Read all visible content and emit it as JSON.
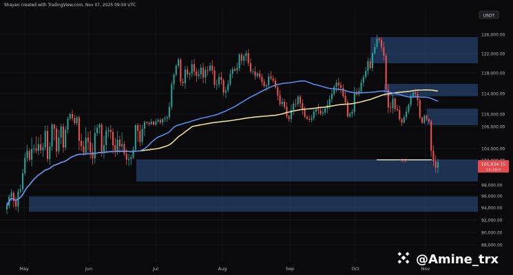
{
  "header": {
    "credit": "Shayan​ created with TradingView.com, Nov 07, 2025 09:50 UTC"
  },
  "currency_badge": "USDT",
  "price_badge": {
    "price": "101,634.15",
    "countdown": "14:20:0"
  },
  "sweep_label": "SS",
  "watermark": {
    "handle": "@Amine_trx",
    "logo_icon": "binance-logo-icon"
  },
  "colors": {
    "background": "#0a0a0c",
    "bull_candle": "#26a69a",
    "bear_candle": "#ef5350",
    "ma_fast": "#5b8def",
    "ma_slow": "#f2e19a",
    "zone_fill": "#2a4a7a",
    "price_badge": "#e5484d"
  },
  "chart_data": {
    "type": "candlestick",
    "title": "",
    "xlabel": "",
    "ylabel": "",
    "x_ticks": [
      "May",
      "Jun",
      "Jul",
      "Aug",
      "Sep",
      "Oct",
      "Nov"
    ],
    "y_ticks": [
      126000,
      122000,
      118000,
      114000,
      110000,
      106000,
      104000,
      102000,
      98000,
      96000,
      94000,
      92000,
      90000,
      88000
    ],
    "y_tick_labels": [
      "126,000.00",
      "122,000.00",
      "118,000.00",
      "114,000.00",
      "110,000.00",
      "106,000.00",
      "104,000.00",
      "102,000.00",
      "98,000.00",
      "96,000.00",
      "94,000.00",
      "92,000.00",
      "90,000.00",
      "88,000.00"
    ],
    "candle_closes": [
      94300,
      95900,
      96600,
      95100,
      94200,
      96800,
      97200,
      99900,
      102400,
      103600,
      102100,
      103900,
      104000,
      103600,
      104400,
      103700,
      104100,
      105600,
      102200,
      104200,
      106600,
      105800,
      103500,
      105000,
      106000,
      104100,
      105700,
      108600,
      110000,
      108700,
      107100,
      108900,
      104700,
      104200,
      103300,
      105000,
      104600,
      103400,
      102300,
      105400,
      105900,
      106600,
      103200,
      104300,
      105600,
      105700,
      105500,
      104300,
      103600,
      104800,
      104200,
      104400,
      103100,
      102100,
      102200,
      102500,
      103800,
      106400,
      105600,
      104600,
      105800,
      107400,
      107200,
      106800,
      107500,
      106600,
      107600,
      108100,
      107300,
      108400,
      108600,
      109000,
      111400,
      115800,
      117600,
      119500,
      120800,
      116300,
      116000,
      118700,
      117700,
      117900,
      119800,
      118300,
      117400,
      117700,
      119100,
      117100,
      118600,
      118500,
      119500,
      118500,
      115700,
      115800,
      117200,
      116600,
      114200,
      114600,
      115800,
      117800,
      118800,
      118500,
      119000,
      121800,
      120500,
      121500,
      122100,
      120000,
      118300,
      118300,
      117400,
      117900,
      117200,
      116300,
      115400,
      115600,
      117300,
      116900,
      116500,
      115200,
      113600,
      111900,
      112400,
      111400,
      109300,
      108400,
      110800,
      112000,
      111900,
      113400,
      112100,
      111000,
      109200,
      108500,
      108200,
      108700,
      110500,
      110900,
      110700,
      110100,
      110300,
      111100,
      111700,
      112900,
      113900,
      115300,
      116100,
      115600,
      115100,
      113500,
      112300,
      109300,
      110100,
      110400,
      114300,
      113800,
      114500,
      116100,
      117200,
      118400,
      120400,
      119000,
      122100,
      123400,
      125100,
      124800,
      123300,
      121600,
      114800,
      111300,
      111200,
      113000,
      111000,
      110800,
      108300,
      107300,
      109000,
      110500,
      111800,
      113500,
      114200,
      113900,
      112700,
      108900,
      107200,
      109500,
      108300,
      107700,
      103600,
      101800,
      100800,
      101634
    ]
  }
}
